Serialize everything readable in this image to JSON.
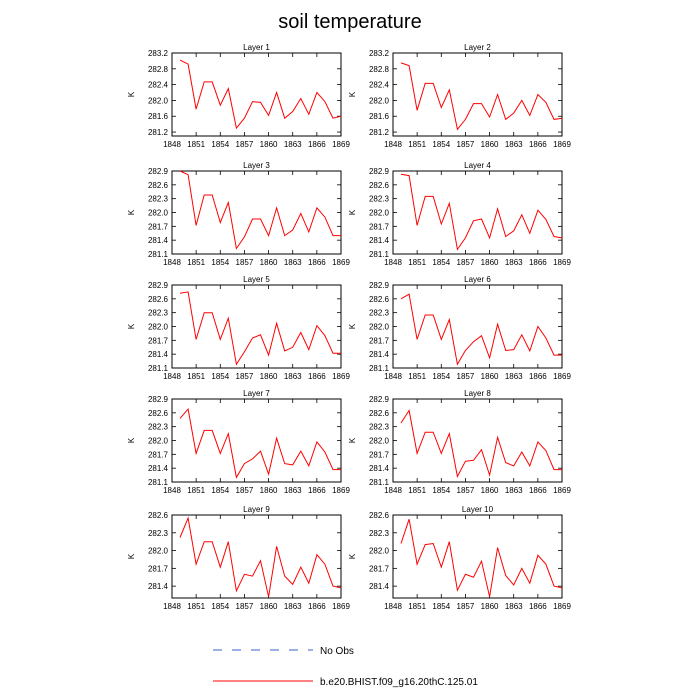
{
  "figure_title": "soil temperature",
  "legend": {
    "entries": [
      {
        "label": "No Obs",
        "color": "#3a5fcd",
        "dash": "dashed"
      },
      {
        "label": "b.e20.BHIST.f09_g16.20thC.125.01",
        "color": "#ff0000",
        "dash": "solid"
      }
    ]
  },
  "chart_data": [
    {
      "type": "line",
      "title": "Layer 1",
      "ylabel": "K",
      "xlim": [
        1848,
        1869
      ],
      "ylim": [
        281.1,
        283.2
      ],
      "xticks": [
        1848,
        1851,
        1854,
        1857,
        1860,
        1863,
        1866,
        1869
      ],
      "yticks": [
        281.2,
        281.6,
        282.0,
        282.4,
        282.8,
        283.2
      ],
      "ytick_labels": [
        "281.2",
        "281.6",
        "282.0",
        "282.4",
        "282.8",
        "283.2"
      ],
      "series": [
        {
          "color": "#ff0000",
          "x": [
            1849,
            1850,
            1851,
            1852,
            1853,
            1854,
            1855,
            1856,
            1857,
            1858,
            1859,
            1860,
            1861,
            1862,
            1863,
            1864,
            1865,
            1866,
            1867,
            1868,
            1869
          ],
          "y": [
            283.02,
            282.92,
            281.78,
            282.47,
            282.47,
            281.88,
            282.3,
            281.3,
            281.55,
            281.97,
            281.95,
            281.62,
            282.2,
            281.55,
            281.72,
            282.05,
            281.65,
            282.2,
            281.97,
            281.55,
            281.6
          ]
        }
      ]
    },
    {
      "type": "line",
      "title": "Layer 2",
      "ylabel": "K",
      "xlim": [
        1848,
        1869
      ],
      "ylim": [
        281.1,
        283.2
      ],
      "xticks": [
        1848,
        1851,
        1854,
        1857,
        1860,
        1863,
        1866,
        1869
      ],
      "yticks": [
        281.2,
        281.6,
        282.0,
        282.4,
        282.8,
        283.2
      ],
      "ytick_labels": [
        "281.2",
        "281.6",
        "282.0",
        "282.4",
        "282.8",
        "283.2"
      ],
      "series": [
        {
          "color": "#ff0000",
          "x": [
            1849,
            1850,
            1851,
            1852,
            1853,
            1854,
            1855,
            1856,
            1857,
            1858,
            1859,
            1860,
            1861,
            1862,
            1863,
            1864,
            1865,
            1866,
            1867,
            1868,
            1869
          ],
          "y": [
            282.95,
            282.88,
            281.75,
            282.43,
            282.43,
            281.82,
            282.27,
            281.27,
            281.52,
            281.92,
            281.92,
            281.58,
            282.15,
            281.52,
            281.68,
            282.0,
            281.62,
            282.15,
            281.95,
            281.52,
            281.55
          ]
        }
      ]
    },
    {
      "type": "line",
      "title": "Layer 3",
      "ylabel": "K",
      "xlim": [
        1848,
        1869
      ],
      "ylim": [
        281.1,
        282.9
      ],
      "xticks": [
        1848,
        1851,
        1854,
        1857,
        1860,
        1863,
        1866,
        1869
      ],
      "yticks": [
        281.1,
        281.4,
        281.7,
        282.0,
        282.3,
        282.6,
        282.9
      ],
      "ytick_labels": [
        "281.1",
        "281.4",
        "281.7",
        "282.0",
        "282.3",
        "282.6",
        "282.9"
      ],
      "series": [
        {
          "color": "#ff0000",
          "x": [
            1849,
            1850,
            1851,
            1852,
            1853,
            1854,
            1855,
            1856,
            1857,
            1858,
            1859,
            1860,
            1861,
            1862,
            1863,
            1864,
            1865,
            1866,
            1867,
            1868,
            1869
          ],
          "y": [
            282.9,
            282.82,
            281.72,
            282.38,
            282.38,
            281.78,
            282.22,
            281.22,
            281.47,
            281.86,
            281.86,
            281.5,
            282.1,
            281.5,
            281.62,
            281.98,
            281.58,
            282.1,
            281.9,
            281.5,
            281.5
          ]
        }
      ]
    },
    {
      "type": "line",
      "title": "Layer 4",
      "ylabel": "K",
      "xlim": [
        1848,
        1869
      ],
      "ylim": [
        281.1,
        282.9
      ],
      "xticks": [
        1848,
        1851,
        1854,
        1857,
        1860,
        1863,
        1866,
        1869
      ],
      "yticks": [
        281.1,
        281.4,
        281.7,
        282.0,
        282.3,
        282.6,
        282.9
      ],
      "ytick_labels": [
        "281.1",
        "281.4",
        "281.7",
        "282.0",
        "282.3",
        "282.6",
        "282.9"
      ],
      "series": [
        {
          "color": "#ff0000",
          "x": [
            1849,
            1850,
            1851,
            1852,
            1853,
            1854,
            1855,
            1856,
            1857,
            1858,
            1859,
            1860,
            1861,
            1862,
            1863,
            1864,
            1865,
            1866,
            1867,
            1868,
            1869
          ],
          "y": [
            282.83,
            282.8,
            281.72,
            282.35,
            282.35,
            281.75,
            282.2,
            281.2,
            281.45,
            281.82,
            281.86,
            281.45,
            282.08,
            281.48,
            281.6,
            281.95,
            281.55,
            282.05,
            281.85,
            281.48,
            281.45
          ]
        }
      ]
    },
    {
      "type": "line",
      "title": "Layer 5",
      "ylabel": "K",
      "xlim": [
        1848,
        1869
      ],
      "ylim": [
        281.1,
        282.9
      ],
      "xticks": [
        1848,
        1851,
        1854,
        1857,
        1860,
        1863,
        1866,
        1869
      ],
      "yticks": [
        281.1,
        281.4,
        281.7,
        282.0,
        282.3,
        282.6,
        282.9
      ],
      "ytick_labels": [
        "281.1",
        "281.4",
        "281.7",
        "282.0",
        "282.3",
        "282.6",
        "282.9"
      ],
      "series": [
        {
          "color": "#ff0000",
          "x": [
            1849,
            1850,
            1851,
            1852,
            1853,
            1854,
            1855,
            1856,
            1857,
            1858,
            1859,
            1860,
            1861,
            1862,
            1863,
            1864,
            1865,
            1866,
            1867,
            1868,
            1869
          ],
          "y": [
            282.72,
            282.75,
            281.72,
            282.3,
            282.3,
            281.72,
            282.18,
            281.18,
            281.45,
            281.75,
            281.82,
            281.38,
            282.07,
            281.47,
            281.55,
            281.87,
            281.5,
            282.02,
            281.8,
            281.42,
            281.42
          ]
        }
      ]
    },
    {
      "type": "line",
      "title": "Layer 6",
      "ylabel": "K",
      "xlim": [
        1848,
        1869
      ],
      "ylim": [
        281.1,
        282.9
      ],
      "xticks": [
        1848,
        1851,
        1854,
        1857,
        1860,
        1863,
        1866,
        1869
      ],
      "yticks": [
        281.1,
        281.4,
        281.7,
        282.0,
        282.3,
        282.6,
        282.9
      ],
      "ytick_labels": [
        "281.1",
        "281.4",
        "281.7",
        "282.0",
        "282.3",
        "282.6",
        "282.9"
      ],
      "series": [
        {
          "color": "#ff0000",
          "x": [
            1849,
            1850,
            1851,
            1852,
            1853,
            1854,
            1855,
            1856,
            1857,
            1858,
            1859,
            1860,
            1861,
            1862,
            1863,
            1864,
            1865,
            1866,
            1867,
            1868,
            1869
          ],
          "y": [
            282.6,
            282.7,
            281.72,
            282.25,
            282.25,
            281.72,
            282.15,
            281.18,
            281.48,
            281.67,
            281.8,
            281.32,
            282.05,
            281.48,
            281.5,
            281.82,
            281.47,
            282.0,
            281.75,
            281.38,
            281.38
          ]
        }
      ]
    },
    {
      "type": "line",
      "title": "Layer 7",
      "ylabel": "K",
      "xlim": [
        1848,
        1869
      ],
      "ylim": [
        281.1,
        282.9
      ],
      "xticks": [
        1848,
        1851,
        1854,
        1857,
        1860,
        1863,
        1866,
        1869
      ],
      "yticks": [
        281.1,
        281.4,
        281.7,
        282.0,
        282.3,
        282.6,
        282.9
      ],
      "ytick_labels": [
        "281.1",
        "281.4",
        "281.7",
        "282.0",
        "282.3",
        "282.6",
        "282.9"
      ],
      "series": [
        {
          "color": "#ff0000",
          "x": [
            1849,
            1850,
            1851,
            1852,
            1853,
            1854,
            1855,
            1856,
            1857,
            1858,
            1859,
            1860,
            1861,
            1862,
            1863,
            1864,
            1865,
            1866,
            1867,
            1868,
            1869
          ],
          "y": [
            282.48,
            282.68,
            281.72,
            282.22,
            282.22,
            281.72,
            282.15,
            281.2,
            281.5,
            281.6,
            281.77,
            281.27,
            282.05,
            281.5,
            281.47,
            281.77,
            281.45,
            281.97,
            281.75,
            281.37,
            281.37
          ]
        }
      ]
    },
    {
      "type": "line",
      "title": "Layer 8",
      "ylabel": "K",
      "xlim": [
        1848,
        1869
      ],
      "ylim": [
        281.1,
        282.9
      ],
      "xticks": [
        1848,
        1851,
        1854,
        1857,
        1860,
        1863,
        1866,
        1869
      ],
      "yticks": [
        281.1,
        281.4,
        281.7,
        282.0,
        282.3,
        282.6,
        282.9
      ],
      "ytick_labels": [
        "281.1",
        "281.4",
        "281.7",
        "282.0",
        "282.3",
        "282.6",
        "282.9"
      ],
      "series": [
        {
          "color": "#ff0000",
          "x": [
            1849,
            1850,
            1851,
            1852,
            1853,
            1854,
            1855,
            1856,
            1857,
            1858,
            1859,
            1860,
            1861,
            1862,
            1863,
            1864,
            1865,
            1866,
            1867,
            1868,
            1869
          ],
          "y": [
            282.38,
            282.65,
            281.72,
            282.18,
            282.18,
            281.72,
            282.15,
            281.22,
            281.55,
            281.57,
            281.8,
            281.25,
            282.07,
            281.52,
            281.45,
            281.75,
            281.45,
            281.97,
            281.78,
            281.37,
            281.37
          ]
        }
      ]
    },
    {
      "type": "line",
      "title": "Layer 9",
      "ylabel": "K",
      "xlim": [
        1848,
        1869
      ],
      "ylim": [
        281.2,
        282.6
      ],
      "xticks": [
        1848,
        1851,
        1854,
        1857,
        1860,
        1863,
        1866,
        1869
      ],
      "yticks": [
        281.4,
        281.7,
        282.0,
        282.3,
        282.6
      ],
      "ytick_labels": [
        "281.4",
        "281.7",
        "282.0",
        "282.3",
        "282.6"
      ],
      "series": [
        {
          "color": "#ff0000",
          "x": [
            1849,
            1850,
            1851,
            1852,
            1853,
            1854,
            1855,
            1856,
            1857,
            1858,
            1859,
            1860,
            1861,
            1862,
            1863,
            1864,
            1865,
            1866,
            1867,
            1868,
            1869
          ],
          "y": [
            282.22,
            282.55,
            281.77,
            282.15,
            282.15,
            281.72,
            282.15,
            281.32,
            281.6,
            281.57,
            281.83,
            281.22,
            282.07,
            281.57,
            281.43,
            281.72,
            281.45,
            281.93,
            281.77,
            281.4,
            281.37
          ]
        }
      ]
    },
    {
      "type": "line",
      "title": "Layer 10",
      "ylabel": "K",
      "xlim": [
        1848,
        1869
      ],
      "ylim": [
        281.2,
        282.6
      ],
      "xticks": [
        1848,
        1851,
        1854,
        1857,
        1860,
        1863,
        1866,
        1869
      ],
      "yticks": [
        281.4,
        281.7,
        282.0,
        282.3,
        282.6
      ],
      "ytick_labels": [
        "281.4",
        "281.7",
        "282.0",
        "282.3",
        "282.6"
      ],
      "series": [
        {
          "color": "#ff0000",
          "x": [
            1849,
            1850,
            1851,
            1852,
            1853,
            1854,
            1855,
            1856,
            1857,
            1858,
            1859,
            1860,
            1861,
            1862,
            1863,
            1864,
            1865,
            1866,
            1867,
            1868,
            1869
          ],
          "y": [
            282.12,
            282.53,
            281.77,
            282.1,
            282.12,
            281.72,
            282.15,
            281.33,
            281.6,
            281.55,
            281.82,
            281.22,
            282.05,
            281.58,
            281.42,
            281.7,
            281.45,
            281.92,
            281.77,
            281.4,
            281.37
          ]
        }
      ]
    }
  ]
}
